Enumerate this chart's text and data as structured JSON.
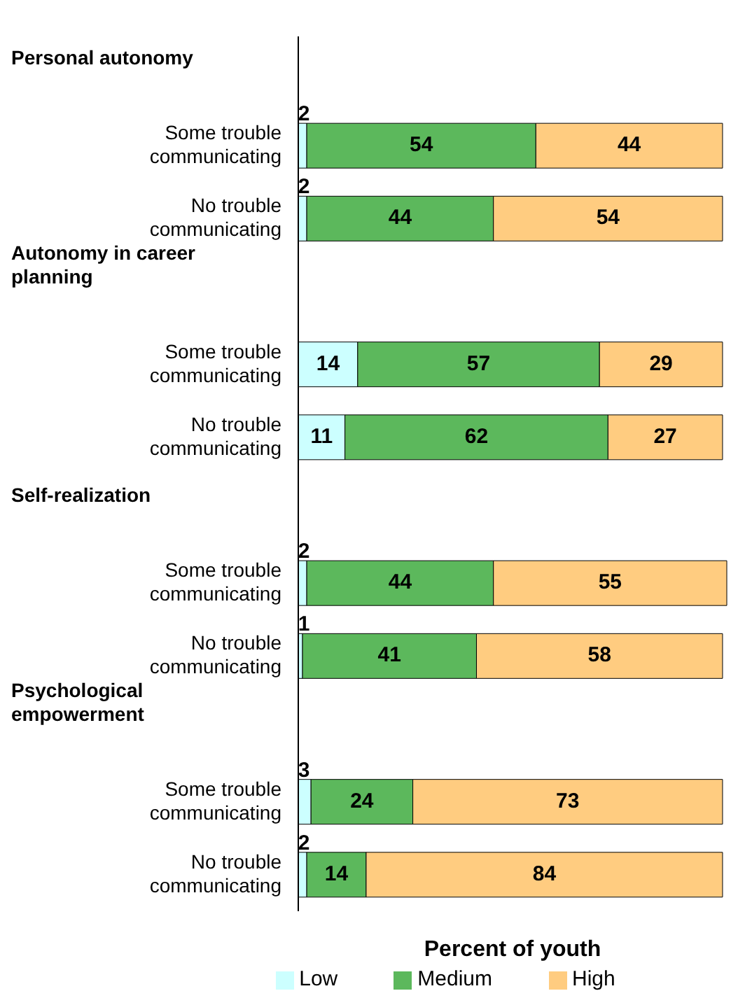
{
  "chart_data": {
    "type": "bar",
    "orientation": "horizontal",
    "stacked": true,
    "data_labels": true,
    "xlabel": "Percent of youth",
    "legend": "bottom",
    "annotations": [
      "Personal autonomy",
      "Autonomy in career planning",
      "Self-realization",
      "Psychological empowerment"
    ],
    "categories": [
      null,
      "Some trouble communicating",
      "No trouble communicating",
      null,
      "Some trouble communicating",
      "No trouble communicating",
      null,
      "Some trouble communicating",
      "No trouble communicating",
      null,
      "Some trouble communicating",
      "No trouble communicating"
    ],
    "series": [
      {
        "name": "Low",
        "color": "#ccffff",
        "values": [
          null,
          2,
          2,
          null,
          14,
          11,
          null,
          2,
          1,
          null,
          3,
          2
        ]
      },
      {
        "name": "Medium",
        "color": "#5cb85c",
        "values": [
          null,
          54,
          44,
          null,
          57,
          62,
          null,
          44,
          41,
          null,
          24,
          14
        ]
      },
      {
        "name": "High",
        "color": "#ffcc80",
        "values": [
          null,
          44,
          54,
          null,
          29,
          27,
          null,
          55,
          58,
          null,
          73,
          84
        ]
      }
    ]
  }
}
